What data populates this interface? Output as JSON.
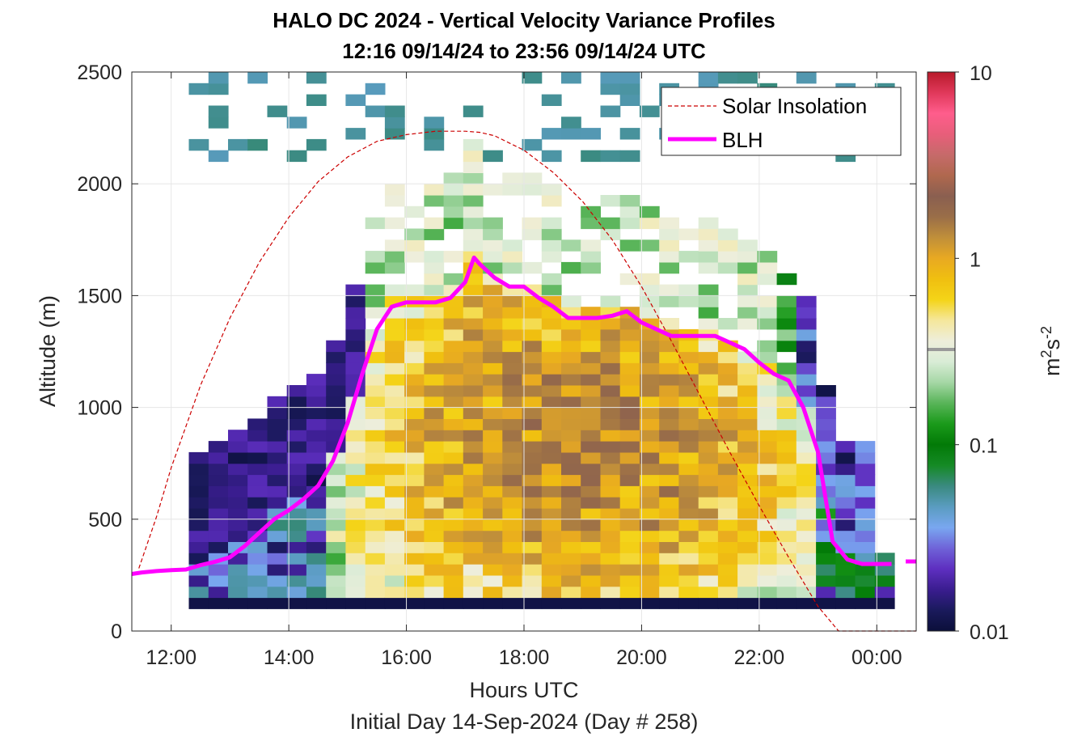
{
  "chart_data": {
    "type": "heatmap",
    "title": "HALO DC 2024 - Vertical Velocity Variance Profiles",
    "subtitle": "12:16 09/14/24 to 23:56 09/14/24  UTC",
    "xlabel": "Hours UTC",
    "xlabel2": "Initial Day 14-Sep-2024 (Day # 258)",
    "ylabel": "Altitude (m)",
    "xlim": [
      11.33,
      24.67
    ],
    "ylim": [
      0,
      2500
    ],
    "x_ticks": [
      12,
      14,
      16,
      18,
      20,
      22,
      24
    ],
    "x_tick_labels": [
      "12:00",
      "14:00",
      "16:00",
      "18:00",
      "20:00",
      "22:00",
      "00:00"
    ],
    "y_ticks": [
      0,
      500,
      1000,
      1500,
      2000,
      2500
    ],
    "y_tick_labels": [
      "0",
      "500",
      "1000",
      "1500",
      "2000",
      "2500"
    ],
    "grid": true,
    "colorbar": {
      "label_base": "m",
      "label_sup1": "2",
      "label_mid": "s",
      "label_sup2": "-2",
      "scale": "log",
      "range": [
        0.01,
        10
      ],
      "tick_values": [
        0.01,
        0.1,
        1,
        10
      ],
      "tick_labels": [
        "0.01",
        "0.1",
        "1",
        "10"
      ],
      "stops": [
        "#0b0f3a",
        "#1a1a5c",
        "#3a1d8f",
        "#5e2fc0",
        "#6f63d8",
        "#79a7f0",
        "#5a9cc0",
        "#3a8a80",
        "#158a25",
        "#027a07",
        "#1a9a1a",
        "#58b458",
        "#a5d7a5",
        "#d9ecd6",
        "#eeeedb",
        "#f5e79c",
        "#f4d418",
        "#f0bf10",
        "#e8a922",
        "#c08f3a",
        "#9a6e48",
        "#8a5f50",
        "#b0684e",
        "#c66a6a",
        "#e85e7a",
        "#ff5d8c",
        "#e0385a",
        "#b81a2a"
      ]
    },
    "legend": {
      "placement": "top-right",
      "entries": [
        {
          "label": "Solar Insolation",
          "color": "#cc0000",
          "style": "dashed"
        },
        {
          "label": "BLH",
          "color": "#ff00ff",
          "style": "solid"
        }
      ]
    },
    "series": [
      {
        "name": "BLH",
        "color": "#ff00ff",
        "x": [
          11.33,
          11.5,
          11.75,
          12.0,
          12.25,
          12.5,
          12.75,
          13.0,
          13.25,
          13.5,
          13.75,
          14.0,
          14.25,
          14.5,
          14.75,
          15.0,
          15.25,
          15.5,
          15.75,
          16.0,
          16.25,
          16.5,
          16.75,
          17.0,
          17.15,
          17.25,
          17.5,
          17.75,
          18.0,
          18.25,
          18.5,
          18.75,
          19.0,
          19.25,
          19.5,
          19.75,
          20.0,
          20.25,
          20.5,
          20.75,
          21.0,
          21.25,
          21.5,
          21.75,
          22.0,
          22.25,
          22.5,
          22.75,
          23.0,
          23.25,
          23.5,
          23.75,
          24.0,
          24.25
        ],
        "y": [
          255,
          262,
          268,
          272,
          275,
          295,
          310,
          330,
          380,
          440,
          500,
          540,
          590,
          650,
          760,
          930,
          1150,
          1350,
          1450,
          1470,
          1470,
          1470,
          1490,
          1560,
          1670,
          1640,
          1580,
          1540,
          1540,
          1490,
          1450,
          1400,
          1400,
          1400,
          1410,
          1430,
          1380,
          1350,
          1320,
          1320,
          1320,
          1320,
          1290,
          1260,
          1200,
          1150,
          1120,
          1000,
          800,
          400,
          320,
          300,
          300,
          300
        ]
      },
      {
        "name": "Solar Insolation",
        "color": "#cc0000",
        "x": [
          11.45,
          11.75,
          12.0,
          12.5,
          13.0,
          13.5,
          14.0,
          14.5,
          15.0,
          15.5,
          16.0,
          16.5,
          17.0,
          17.25,
          17.5,
          18.0,
          18.5,
          19.0,
          19.5,
          20.0,
          20.5,
          21.0,
          21.5,
          22.0,
          22.5,
          23.0,
          23.35,
          24.67
        ],
        "y": [
          280,
          510,
          730,
          1100,
          1400,
          1650,
          1850,
          2010,
          2120,
          2190,
          2220,
          2235,
          2235,
          2230,
          2215,
          2150,
          2050,
          1920,
          1750,
          1540,
          1300,
          1050,
          800,
          560,
          330,
          110,
          0,
          0
        ]
      }
    ],
    "heatmap": {
      "description_free": true,
      "x_edges_hours": [
        12.25,
        24.0
      ],
      "bin_hours": 0.333,
      "bin_m": 50,
      "note_values": "variance field rendered from the colorbar scale"
    }
  }
}
